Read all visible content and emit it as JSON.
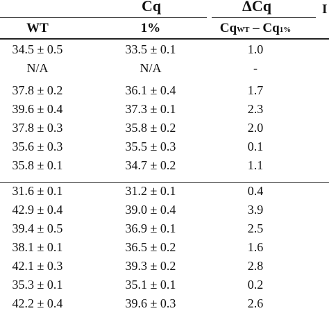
{
  "header": {
    "cq_label": "Cq",
    "dcq_label": "ΔCq",
    "edge_label": "I",
    "col_wt": "WT",
    "col_one": "1%",
    "diff_main_a": "Cq",
    "diff_sub_a": "WT",
    "diff_dash": " – Cq",
    "diff_sub_b": "1%"
  },
  "rows": [
    {
      "wt": "34.5 ± 0.5",
      "one": "33.5 ± 0.1",
      "dcq": "1.0"
    },
    {
      "wt": "N/A",
      "one": "N/A",
      "dcq": "-"
    },
    {
      "wt": "37.8 ± 0.2",
      "one": "36.1 ± 0.4",
      "dcq": "1.7"
    },
    {
      "wt": "39.6 ± 0.4",
      "one": "37.3 ± 0.1",
      "dcq": "2.3"
    },
    {
      "wt": "37.8 ± 0.3",
      "one": "35.8 ± 0.2",
      "dcq": "2.0"
    },
    {
      "wt": "35.6 ± 0.3",
      "one": "35.5 ± 0.3",
      "dcq": "0.1"
    },
    {
      "wt": "35.8 ± 0.1",
      "one": "34.7 ± 0.2",
      "dcq": "1.1"
    },
    {
      "wt": "31.6 ± 0.1",
      "one": "31.2 ± 0.1",
      "dcq": "0.4"
    },
    {
      "wt": "42.9 ± 0.4",
      "one": "39.0 ± 0.4",
      "dcq": "3.9"
    },
    {
      "wt": "39.4 ± 0.5",
      "one": "36.9 ± 0.1",
      "dcq": "2.5"
    },
    {
      "wt": "38.1 ± 0.1",
      "one": "36.5 ± 0.2",
      "dcq": "1.6"
    },
    {
      "wt": "42.1 ± 0.3",
      "one": "39.3 ± 0.2",
      "dcq": "2.8"
    },
    {
      "wt": "35.3 ± 0.1",
      "one": "35.1 ± 0.1",
      "dcq": "0.2"
    },
    {
      "wt": "42.2 ± 0.4",
      "one": "39.6 ± 0.3",
      "dcq": "2.6"
    }
  ]
}
